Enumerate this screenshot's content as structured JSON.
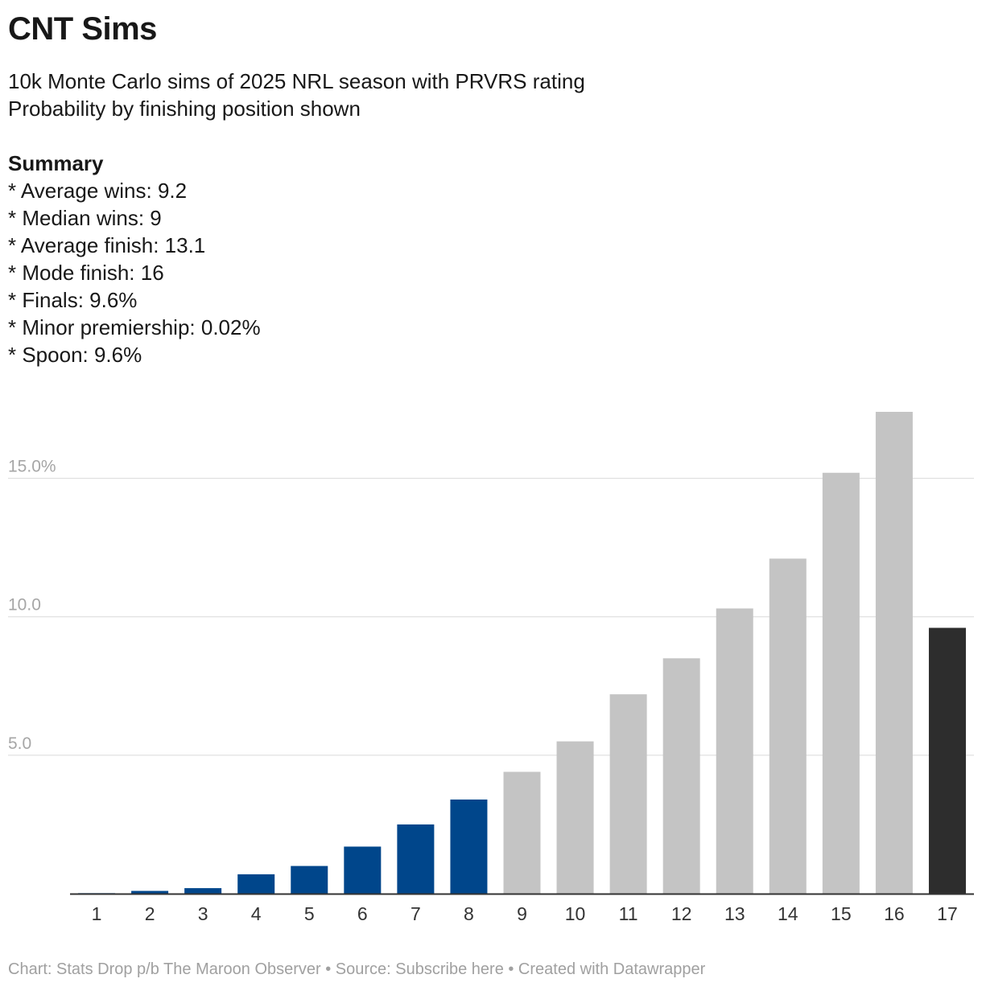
{
  "title": "CNT Sims",
  "description": {
    "line1": "10k Monte Carlo sims of 2025 NRL season with PRVRS rating",
    "line2": "Probability by finishing position shown",
    "summary_heading": "Summary",
    "summary_items": [
      "* Average wins: 9.2",
      "* Median wins: 9",
      "* Average finish: 13.1",
      "* Mode finish: 16",
      "* Finals: 9.6%",
      "* Minor premiership: 0.02%",
      "* Spoon: 9.6%"
    ]
  },
  "footer": "Chart: Stats Drop p/b The Maroon Observer • Source: Subscribe here • Created with Datawrapper",
  "chart_data": {
    "type": "bar",
    "categories": [
      "1",
      "2",
      "3",
      "4",
      "5",
      "6",
      "7",
      "8",
      "9",
      "10",
      "11",
      "12",
      "13",
      "14",
      "15",
      "16",
      "17"
    ],
    "values": [
      0.02,
      0.1,
      0.2,
      0.7,
      1.0,
      1.7,
      2.5,
      3.4,
      4.4,
      5.5,
      7.2,
      8.5,
      10.3,
      12.1,
      15.2,
      17.4,
      9.6
    ],
    "ylim": [
      0,
      17.4
    ],
    "yticks": [
      5,
      10,
      15
    ],
    "ytick_labels": [
      "5.0",
      "10.0",
      "15.0%"
    ],
    "grid": true,
    "colors": {
      "finals": "#00468b",
      "non_finals": "#c4c4c4",
      "spoon": "#2d2d2d",
      "grid": "#e0e0e0",
      "axis": "#333333",
      "tick_label": "#a6a6a6",
      "category_label": "#333333"
    },
    "bar_groups": [
      "finals",
      "finals",
      "finals",
      "finals",
      "finals",
      "finals",
      "finals",
      "finals",
      "non_finals",
      "non_finals",
      "non_finals",
      "non_finals",
      "non_finals",
      "non_finals",
      "non_finals",
      "non_finals",
      "spoon"
    ]
  }
}
